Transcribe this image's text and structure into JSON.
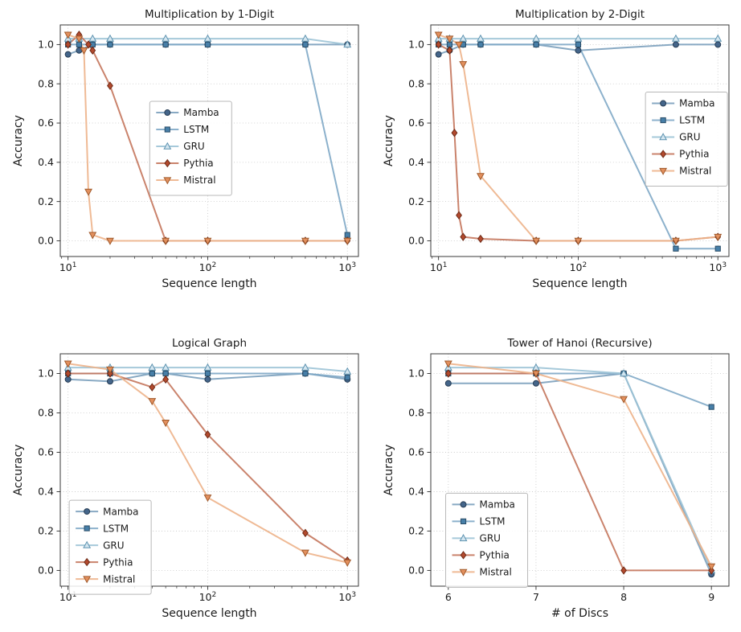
{
  "figure": {
    "background": "#ffffff",
    "font_color": "#1a1a1a"
  },
  "chart_data": [
    {
      "type": "line",
      "title": "Multiplication by 1-Digit",
      "xlabel": "Sequence length",
      "ylabel": "Accuracy",
      "xscale": "log",
      "xlim": [
        8.8,
        1200
      ],
      "ylim": [
        -0.08,
        1.1
      ],
      "xticks": [
        {
          "v": 10,
          "label": "10^1"
        },
        {
          "v": 100,
          "label": "10^2"
        },
        {
          "v": 1000,
          "label": "10^3"
        }
      ],
      "yticks": [
        0.0,
        0.2,
        0.4,
        0.6,
        0.8,
        1.0
      ],
      "grid": true,
      "legend": {
        "x": 0.3,
        "y": 0.33
      },
      "series": [
        {
          "name": "Mamba",
          "marker": "circle",
          "fill": "#44658a",
          "edge": "#263c54",
          "line": "#7ba0bd",
          "x": [
            10,
            12,
            15,
            20,
            50,
            100,
            500,
            1000
          ],
          "y": [
            0.95,
            0.97,
            1.0,
            1.0,
            1.0,
            1.0,
            1.0,
            1.0
          ]
        },
        {
          "name": "LSTM",
          "marker": "square",
          "fill": "#477fa8",
          "edge": "#2a4d68",
          "line": "#7fa8c6",
          "x": [
            10,
            12,
            15,
            20,
            50,
            100,
            500,
            1000
          ],
          "y": [
            1.0,
            1.0,
            1.0,
            1.0,
            1.0,
            1.0,
            1.0,
            0.03
          ]
        },
        {
          "name": "GRU",
          "marker": "triangle-up",
          "fill": "#d4e6f0",
          "edge": "#5e93b0",
          "line": "#9cc3d6",
          "x": [
            10,
            12,
            15,
            20,
            50,
            100,
            500,
            1000
          ],
          "y": [
            1.03,
            1.03,
            1.03,
            1.03,
            1.03,
            1.03,
            1.03,
            1.0
          ]
        },
        {
          "name": "Pythia",
          "marker": "diamond",
          "fill": "#b34a2e",
          "edge": "#6e2a16",
          "line": "#c4765c",
          "x": [
            10,
            12,
            14,
            15,
            20,
            50,
            100,
            500,
            1000
          ],
          "y": [
            1.0,
            1.05,
            1.0,
            0.97,
            0.79,
            0.0,
            0.0,
            0.0,
            0.0
          ]
        },
        {
          "name": "Mistral",
          "marker": "triangle-down",
          "fill": "#e3905e",
          "edge": "#a05a2c",
          "line": "#edb28a",
          "x": [
            10,
            12,
            13,
            14,
            15,
            20,
            50,
            100,
            500,
            1000
          ],
          "y": [
            1.05,
            1.03,
            0.97,
            0.25,
            0.03,
            0.0,
            0.0,
            0.0,
            0.0,
            0.0
          ]
        }
      ]
    },
    {
      "type": "line",
      "title": "Multiplication by 2-Digit",
      "xlabel": "Sequence length",
      "ylabel": "Accuracy",
      "xscale": "log",
      "xlim": [
        8.8,
        1200
      ],
      "ylim": [
        -0.08,
        1.1
      ],
      "xticks": [
        {
          "v": 10,
          "label": "10^1"
        },
        {
          "v": 100,
          "label": "10^2"
        },
        {
          "v": 1000,
          "label": "10^3"
        }
      ],
      "yticks": [
        0.0,
        0.2,
        0.4,
        0.6,
        0.8,
        1.0
      ],
      "grid": true,
      "legend": {
        "x": 0.72,
        "y": 0.29
      },
      "series": [
        {
          "name": "Mamba",
          "marker": "circle",
          "fill": "#44658a",
          "edge": "#263c54",
          "line": "#7ba0bd",
          "x": [
            10,
            12,
            15,
            20,
            50,
            100,
            500,
            1000
          ],
          "y": [
            0.95,
            0.97,
            1.0,
            1.0,
            1.0,
            0.97,
            1.0,
            1.0
          ]
        },
        {
          "name": "LSTM",
          "marker": "square",
          "fill": "#477fa8",
          "edge": "#2a4d68",
          "line": "#7fa8c6",
          "x": [
            10,
            12,
            15,
            20,
            50,
            100,
            500,
            1000
          ],
          "y": [
            1.0,
            1.0,
            1.0,
            1.0,
            1.0,
            1.0,
            -0.04,
            -0.04
          ]
        },
        {
          "name": "GRU",
          "marker": "triangle-up",
          "fill": "#d4e6f0",
          "edge": "#5e93b0",
          "line": "#9cc3d6",
          "x": [
            10,
            12,
            15,
            20,
            50,
            100,
            500,
            1000
          ],
          "y": [
            1.03,
            1.03,
            1.03,
            1.03,
            1.03,
            1.03,
            1.03,
            1.03
          ]
        },
        {
          "name": "Pythia",
          "marker": "diamond",
          "fill": "#b34a2e",
          "edge": "#6e2a16",
          "line": "#c4765c",
          "x": [
            10,
            12,
            13,
            14,
            15,
            20,
            50,
            100,
            500,
            1000
          ],
          "y": [
            1.0,
            0.97,
            0.55,
            0.13,
            0.02,
            0.01,
            0.0,
            0.0,
            0.0,
            0.02
          ]
        },
        {
          "name": "Mistral",
          "marker": "triangle-down",
          "fill": "#e3905e",
          "edge": "#a05a2c",
          "line": "#edb28a",
          "x": [
            10,
            12,
            14,
            15,
            20,
            50,
            100,
            500,
            1000
          ],
          "y": [
            1.05,
            1.03,
            1.0,
            0.9,
            0.33,
            0.0,
            0.0,
            0.0,
            0.02
          ]
        }
      ]
    },
    {
      "type": "line",
      "title": "Logical Graph",
      "xlabel": "Sequence length",
      "ylabel": "Accuracy",
      "xscale": "log",
      "xlim": [
        8.8,
        1200
      ],
      "ylim": [
        -0.08,
        1.1
      ],
      "xticks": [
        {
          "v": 10,
          "label": "10^1"
        },
        {
          "v": 100,
          "label": "10^2"
        },
        {
          "v": 1000,
          "label": "10^3"
        }
      ],
      "yticks": [
        0.0,
        0.2,
        0.4,
        0.6,
        0.8,
        1.0
      ],
      "grid": true,
      "legend": {
        "x": 0.03,
        "y": 0.63
      },
      "series": [
        {
          "name": "Mamba",
          "marker": "circle",
          "fill": "#44658a",
          "edge": "#263c54",
          "line": "#7ba0bd",
          "x": [
            10,
            20,
            40,
            50,
            100,
            500,
            1000
          ],
          "y": [
            0.97,
            0.96,
            1.0,
            1.0,
            0.97,
            1.0,
            0.97
          ]
        },
        {
          "name": "LSTM",
          "marker": "square",
          "fill": "#477fa8",
          "edge": "#2a4d68",
          "line": "#7fa8c6",
          "x": [
            10,
            20,
            40,
            50,
            100,
            500,
            1000
          ],
          "y": [
            1.0,
            1.0,
            1.0,
            1.0,
            1.0,
            1.0,
            0.98
          ]
        },
        {
          "name": "GRU",
          "marker": "triangle-up",
          "fill": "#d4e6f0",
          "edge": "#5e93b0",
          "line": "#9cc3d6",
          "x": [
            10,
            20,
            40,
            50,
            100,
            500,
            1000
          ],
          "y": [
            1.03,
            1.03,
            1.03,
            1.03,
            1.03,
            1.03,
            1.01
          ]
        },
        {
          "name": "Pythia",
          "marker": "diamond",
          "fill": "#b34a2e",
          "edge": "#6e2a16",
          "line": "#c4765c",
          "x": [
            10,
            20,
            40,
            50,
            100,
            500,
            1000
          ],
          "y": [
            1.0,
            1.0,
            0.93,
            0.97,
            0.69,
            0.19,
            0.05
          ]
        },
        {
          "name": "Mistral",
          "marker": "triangle-down",
          "fill": "#e3905e",
          "edge": "#a05a2c",
          "line": "#edb28a",
          "x": [
            10,
            20,
            40,
            50,
            100,
            500,
            1000
          ],
          "y": [
            1.05,
            1.02,
            0.86,
            0.75,
            0.37,
            0.09,
            0.04
          ]
        }
      ]
    },
    {
      "type": "line",
      "title": "Tower of Hanoi (Recursive)",
      "xlabel": "# of Discs",
      "ylabel": "Accuracy",
      "xscale": "linear",
      "xlim": [
        5.8,
        9.2
      ],
      "ylim": [
        -0.08,
        1.1
      ],
      "xticks": [
        {
          "v": 6,
          "label": "6"
        },
        {
          "v": 7,
          "label": "7"
        },
        {
          "v": 8,
          "label": "8"
        },
        {
          "v": 9,
          "label": "9"
        }
      ],
      "yticks": [
        0.0,
        0.2,
        0.4,
        0.6,
        0.8,
        1.0
      ],
      "grid": true,
      "legend": {
        "x": 0.05,
        "y": 0.6
      },
      "series": [
        {
          "name": "Mamba",
          "marker": "circle",
          "fill": "#44658a",
          "edge": "#263c54",
          "line": "#7ba0bd",
          "x": [
            6,
            7,
            8,
            9
          ],
          "y": [
            0.95,
            0.95,
            1.0,
            -0.02
          ]
        },
        {
          "name": "LSTM",
          "marker": "square",
          "fill": "#477fa8",
          "edge": "#2a4d68",
          "line": "#7fa8c6",
          "x": [
            6,
            7,
            8,
            9
          ],
          "y": [
            1.0,
            1.0,
            1.0,
            0.83
          ]
        },
        {
          "name": "GRU",
          "marker": "triangle-up",
          "fill": "#d4e6f0",
          "edge": "#5e93b0",
          "line": "#9cc3d6",
          "x": [
            6,
            7,
            8,
            9
          ],
          "y": [
            1.03,
            1.03,
            1.0,
            0.0
          ]
        },
        {
          "name": "Pythia",
          "marker": "diamond",
          "fill": "#b34a2e",
          "edge": "#6e2a16",
          "line": "#c4765c",
          "x": [
            6,
            7,
            8,
            9
          ],
          "y": [
            1.0,
            1.0,
            0.0,
            0.0
          ]
        },
        {
          "name": "Mistral",
          "marker": "triangle-down",
          "fill": "#e3905e",
          "edge": "#a05a2c",
          "line": "#edb28a",
          "x": [
            6,
            7,
            8,
            9
          ],
          "y": [
            1.05,
            1.0,
            0.87,
            0.02
          ]
        }
      ]
    }
  ]
}
